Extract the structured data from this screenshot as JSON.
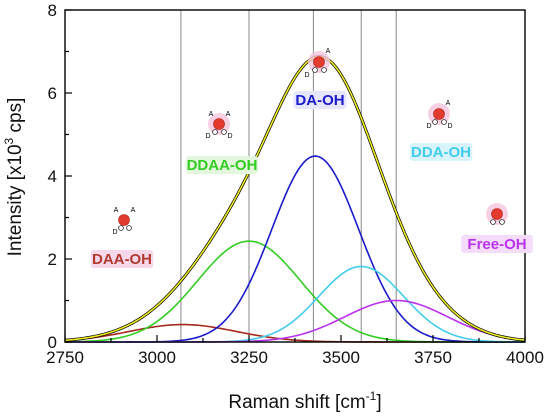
{
  "chart_data": {
    "type": "line",
    "xlabel": "Raman shift [cm",
    "xlabel_sup": "-1",
    "xlabel_end": "]",
    "ylabel": "Intensity [x10",
    "ylabel_sup": "3",
    "ylabel_end": " cps]",
    "xlim": [
      2750,
      4000
    ],
    "ylim": [
      0,
      8
    ],
    "xticks": [
      "2750",
      "3000",
      "3250",
      "3500",
      "3750",
      "4000"
    ],
    "yticks": [
      "0",
      "2",
      "4",
      "6",
      "8"
    ],
    "grid": false,
    "vertical_lines": [
      3065,
      3250,
      3425,
      3555,
      3650
    ],
    "series": [
      {
        "name": "DAA-OH",
        "color": "#a52a1e",
        "center": 3070,
        "amplitude": 0.42,
        "sigma": 145
      },
      {
        "name": "DDAA-OH",
        "color": "#33cc22",
        "center": 3250,
        "amplitude": 2.43,
        "sigma": 140
      },
      {
        "name": "DA-OH",
        "color": "#1a1acc",
        "center": 3430,
        "amplitude": 4.48,
        "sigma": 118
      },
      {
        "name": "DDA-OH",
        "color": "#44ccee",
        "center": 3555,
        "amplitude": 1.82,
        "sigma": 115
      },
      {
        "name": "Free-OH",
        "color": "#bb33ee",
        "center": 3650,
        "amplitude": 1.0,
        "sigma": 140
      }
    ],
    "envelope": {
      "fit_color": "#eeee22",
      "measured_color": "#000000"
    },
    "annotations": [
      {
        "text": "DAA-OH",
        "color": "#b03a2e",
        "highlight": "#f7d7ea"
      },
      {
        "text": "DDAA-OH",
        "color": "#33cc22",
        "highlight": "#e2f7dc"
      },
      {
        "text": "DA-OH",
        "color": "#1a1acc",
        "highlight": "#e6e6ff"
      },
      {
        "text": "DDA-OH",
        "color": "#44ccee",
        "highlight": "#d8f4fb"
      },
      {
        "text": "Free-OH",
        "color": "#bb33ee",
        "highlight": "#f4dcfa"
      }
    ],
    "molecule_letters": {
      "acceptor": "A",
      "donor": "D"
    }
  }
}
